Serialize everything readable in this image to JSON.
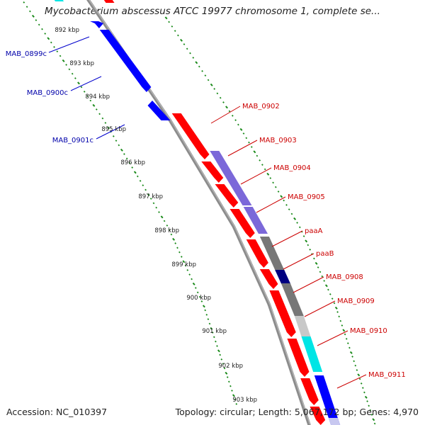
{
  "title": "Mycobacterium abscessus ATCC 19977 chromosome 1, complete se...",
  "footer": {
    "accession": "Accession: NC_010397",
    "stats": "Topology: circular; Length: 5,067,172 bp; Genes: 4,970"
  },
  "colors": {
    "forward_label": "#cc0000",
    "reverse_label": "#0000aa",
    "tick_marks": "#1a8a1a",
    "backbone": "#8c8c8c"
  },
  "scale_ticks": [
    {
      "label": "892 kbp"
    },
    {
      "label": "893 kbp"
    },
    {
      "label": "894 kbp"
    },
    {
      "label": "895 kbp"
    },
    {
      "label": "896 kbp"
    },
    {
      "label": "897 kbp"
    },
    {
      "label": "898 kbp"
    },
    {
      "label": "899 kbp"
    },
    {
      "label": "900 kbp"
    },
    {
      "label": "901 kbp"
    },
    {
      "label": "902 kbp"
    },
    {
      "label": "903 kbp"
    }
  ],
  "reverse_genes": [
    {
      "label": "MAB_0899c"
    },
    {
      "label": "MAB_0900c"
    },
    {
      "label": "MAB_0901c"
    }
  ],
  "forward_genes": [
    {
      "label": "MAB_0902"
    },
    {
      "label": "MAB_0903"
    },
    {
      "label": "MAB_0904"
    },
    {
      "label": "MAB_0905"
    },
    {
      "label": "paaA"
    },
    {
      "label": "paaB"
    },
    {
      "label": "MAB_0908"
    },
    {
      "label": "MAB_0909"
    },
    {
      "label": "MAB_0910"
    },
    {
      "label": "MAB_0911"
    }
  ]
}
